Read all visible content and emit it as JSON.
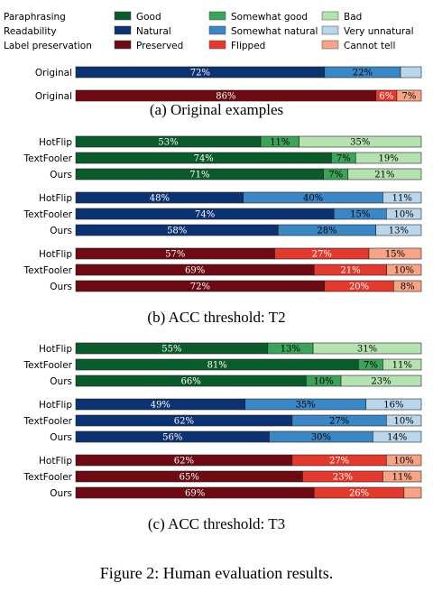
{
  "legend": {
    "rows": [
      {
        "metric": "Paraphrasing",
        "items": [
          {
            "label": "Good",
            "color": "#0b5a2c"
          },
          {
            "label": "Somewhat good",
            "color": "#3da35a"
          },
          {
            "label": "Bad",
            "color": "#b5e2b0"
          }
        ]
      },
      {
        "metric": "Readability",
        "items": [
          {
            "label": "Natural",
            "color": "#0c3272"
          },
          {
            "label": "Somewhat natural",
            "color": "#3b86c4"
          },
          {
            "label": "Very unnatural",
            "color": "#b9d6ec"
          }
        ]
      },
      {
        "metric": "Label preservation",
        "items": [
          {
            "label": "Preserved",
            "color": "#6d0a13"
          },
          {
            "label": "Flipped",
            "color": "#e23a2e"
          },
          {
            "label": "Cannot tell",
            "color": "#f7a486"
          }
        ]
      }
    ]
  },
  "palettes": {
    "paraphrasing": [
      "#0b5a2c",
      "#3da35a",
      "#b5e2b0"
    ],
    "readability": [
      "#0c3272",
      "#3b86c4",
      "#b9d6ec"
    ],
    "label_preservation": [
      "#6d0a13",
      "#e23a2e",
      "#f7a486"
    ]
  },
  "chart_data": [
    {
      "type": "bar",
      "stacked": true,
      "orientation": "horizontal",
      "title": "(a) Original examples",
      "groups": [
        {
          "metric": "readability",
          "bars": [
            {
              "label": "Original",
              "values": [
                72,
                22,
                6
              ],
              "value_labels": [
                "72%",
                "22%",
                ""
              ]
            }
          ]
        },
        {
          "metric": "label_preservation",
          "bars": [
            {
              "label": "Original",
              "values": [
                86,
                6,
                7
              ],
              "value_labels": [
                "86%",
                "6%",
                "7%"
              ]
            }
          ]
        }
      ]
    },
    {
      "type": "bar",
      "stacked": true,
      "orientation": "horizontal",
      "title": "(b) ACC threshold: T2",
      "groups": [
        {
          "metric": "paraphrasing",
          "bars": [
            {
              "label": "HotFlip",
              "values": [
                53,
                11,
                35
              ],
              "value_labels": [
                "53%",
                "11%",
                "35%"
              ]
            },
            {
              "label": "TextFooler",
              "values": [
                74,
                7,
                19
              ],
              "value_labels": [
                "74%",
                "7%",
                "19%"
              ]
            },
            {
              "label": "Ours",
              "values": [
                71,
                7,
                21
              ],
              "value_labels": [
                "71%",
                "7%",
                "21%"
              ]
            }
          ]
        },
        {
          "metric": "readability",
          "bars": [
            {
              "label": "HotFlip",
              "values": [
                48,
                40,
                11
              ],
              "value_labels": [
                "48%",
                "40%",
                "11%"
              ]
            },
            {
              "label": "TextFooler",
              "values": [
                74,
                15,
                10
              ],
              "value_labels": [
                "74%",
                "15%",
                "10%"
              ]
            },
            {
              "label": "Ours",
              "values": [
                58,
                28,
                13
              ],
              "value_labels": [
                "58%",
                "28%",
                "13%"
              ]
            }
          ]
        },
        {
          "metric": "label_preservation",
          "bars": [
            {
              "label": "HotFlip",
              "values": [
                57,
                27,
                15
              ],
              "value_labels": [
                "57%",
                "27%",
                "15%"
              ]
            },
            {
              "label": "TextFooler",
              "values": [
                69,
                21,
                10
              ],
              "value_labels": [
                "69%",
                "21%",
                "10%"
              ]
            },
            {
              "label": "Ours",
              "values": [
                72,
                20,
                8
              ],
              "value_labels": [
                "72%",
                "20%",
                "8%"
              ]
            }
          ]
        }
      ]
    },
    {
      "type": "bar",
      "stacked": true,
      "orientation": "horizontal",
      "title": "(c) ACC threshold: T3",
      "groups": [
        {
          "metric": "paraphrasing",
          "bars": [
            {
              "label": "HotFlip",
              "values": [
                55,
                13,
                31
              ],
              "value_labels": [
                "55%",
                "13%",
                "31%"
              ]
            },
            {
              "label": "TextFooler",
              "values": [
                81,
                7,
                11
              ],
              "value_labels": [
                "81%",
                "7%",
                "11%"
              ]
            },
            {
              "label": "Ours",
              "values": [
                66,
                10,
                23
              ],
              "value_labels": [
                "66%",
                "10%",
                "23%"
              ]
            }
          ]
        },
        {
          "metric": "readability",
          "bars": [
            {
              "label": "HotFlip",
              "values": [
                49,
                35,
                16
              ],
              "value_labels": [
                "49%",
                "35%",
                "16%"
              ]
            },
            {
              "label": "TextFooler",
              "values": [
                62,
                27,
                10
              ],
              "value_labels": [
                "62%",
                "27%",
                "10%"
              ]
            },
            {
              "label": "Ours",
              "values": [
                56,
                30,
                14
              ],
              "value_labels": [
                "56%",
                "30%",
                "14%"
              ]
            }
          ]
        },
        {
          "metric": "label_preservation",
          "bars": [
            {
              "label": "HotFlip",
              "values": [
                62,
                27,
                10
              ],
              "value_labels": [
                "62%",
                "27%",
                "10%"
              ]
            },
            {
              "label": "TextFooler",
              "values": [
                65,
                23,
                11
              ],
              "value_labels": [
                "65%",
                "23%",
                "11%"
              ]
            },
            {
              "label": "Ours",
              "values": [
                69,
                26,
                5
              ],
              "value_labels": [
                "69%",
                "26%",
                ""
              ]
            }
          ]
        }
      ]
    }
  ],
  "figure_caption": "Figure 2: Human evaluation results."
}
